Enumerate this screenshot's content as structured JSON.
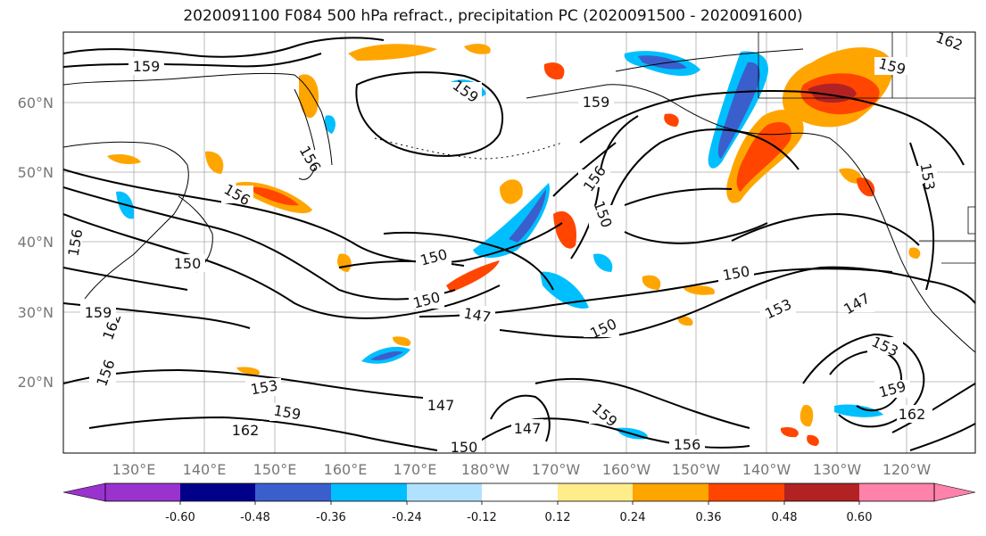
{
  "title": "2020091100 F084 500 hPa refract., precipitation PC (2020091500 - 2020091600)",
  "lat_labels": [
    "60°N",
    "50°N",
    "40°N",
    "30°N",
    "20°N"
  ],
  "lon_labels": [
    "130°E",
    "140°E",
    "150°E",
    "160°E",
    "170°E",
    "180°W",
    "170°W",
    "160°W",
    "150°W",
    "140°W",
    "130°W",
    "120°W"
  ],
  "colorbar": {
    "colors": [
      "#9a32cd",
      "#00008b",
      "#3a5fcd",
      "#00bfff",
      "#b0e2ff",
      "#ffffff",
      "#ffec8b",
      "#ffa500",
      "#ff4500",
      "#b22222",
      "#ff82ab"
    ],
    "tick_labels": [
      "-0.60",
      "-0.48",
      "-0.36",
      "-0.24",
      "-0.12",
      "0.12",
      "0.24",
      "0.36",
      "0.48",
      "0.60"
    ]
  },
  "contour_labels": [
    "159",
    "159",
    "159",
    "156",
    "156",
    "156",
    "153",
    "150",
    "150",
    "150",
    "147",
    "150",
    "150",
    "153",
    "147",
    "153",
    "159",
    "162",
    "153",
    "159",
    "162",
    "156",
    "162",
    "156",
    "150",
    "147",
    "159",
    "156",
    "150",
    "147",
    "162",
    "159",
    "159"
  ]
}
